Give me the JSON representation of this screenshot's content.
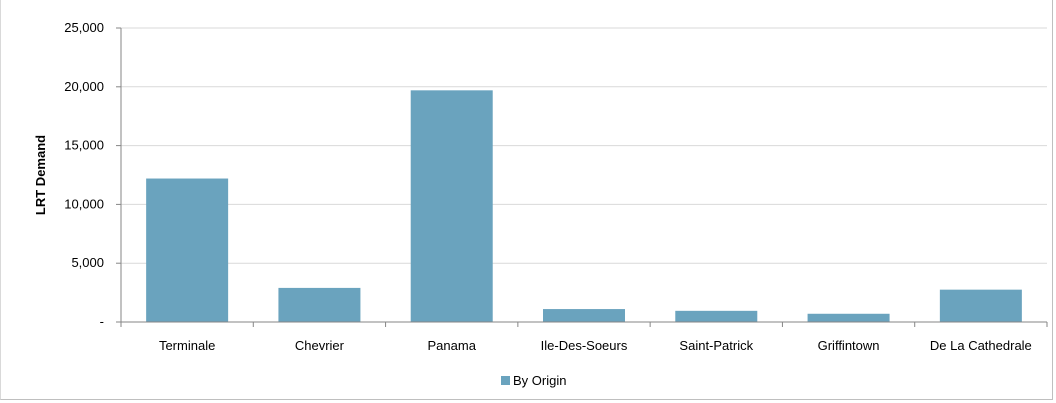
{
  "chart_data": {
    "type": "bar",
    "ylabel": "LRT Demand",
    "xlabel": "",
    "categories": [
      "Terminale",
      "Chevrier",
      "Panama",
      "Ile-Des-Soeurs",
      "Saint-Patrick",
      "Griffintown",
      "De La Cathedrale"
    ],
    "series": [
      {
        "name": "By Origin",
        "color": "#6aa3be",
        "values": [
          12200,
          2900,
          19700,
          1100,
          950,
          700,
          2750
        ]
      }
    ],
    "ylim": [
      0,
      25000
    ],
    "yticks": [
      0,
      5000,
      10000,
      15000,
      20000,
      25000
    ],
    "ytick_labels": [
      "-",
      "5,000",
      "10,000",
      "15,000",
      "20,000",
      "25,000"
    ],
    "grid": true,
    "legend_position": "bottom"
  }
}
